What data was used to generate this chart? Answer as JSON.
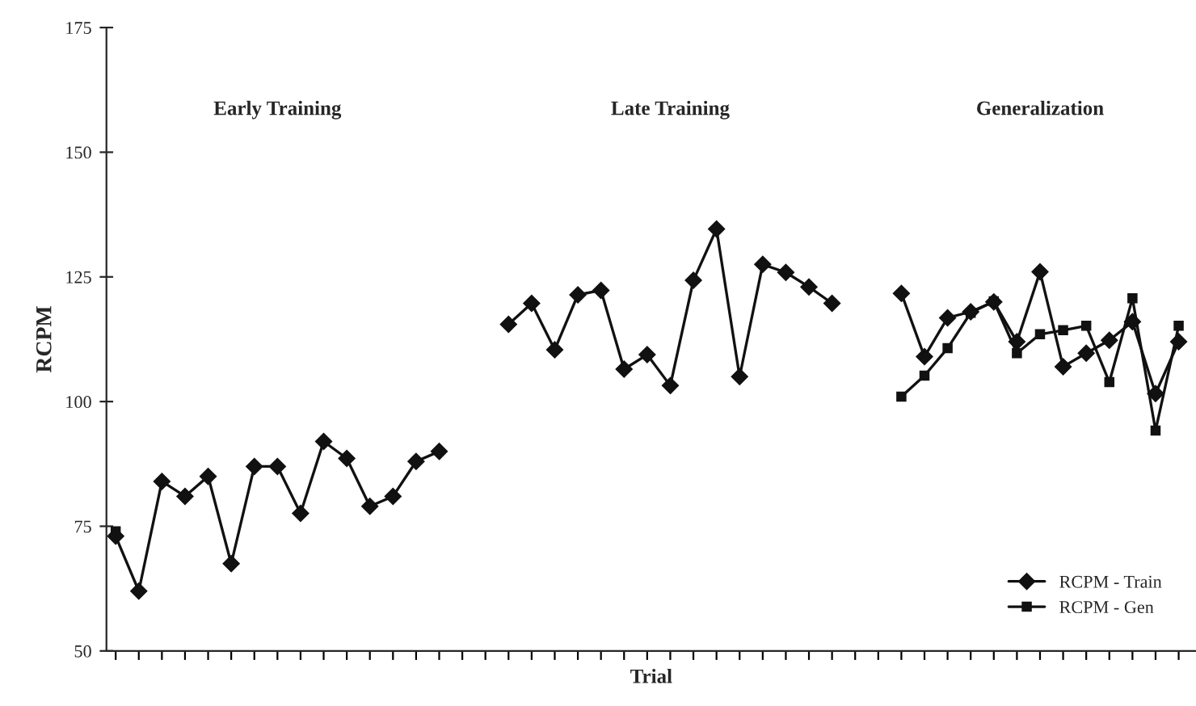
{
  "chart_data": {
    "type": "line",
    "xlabel": "Trial",
    "ylabel": "RCPM",
    "categories": [
      null,
      null,
      null,
      null,
      null,
      null,
      null,
      null,
      null,
      null,
      null,
      null,
      null,
      null,
      null,
      null,
      null,
      null,
      null,
      null,
      null,
      null,
      null,
      null,
      null,
      null,
      null,
      null,
      null,
      null,
      null,
      null,
      null,
      null,
      null,
      null,
      null,
      null,
      null,
      null,
      null,
      null,
      null,
      null,
      null,
      null,
      null
    ],
    "series": [
      {
        "name": "RCPM - Train",
        "color": "#111111",
        "marker": "diamond",
        "values": [
          73,
          62,
          84,
          81,
          85,
          67.5,
          87,
          87,
          77.6,
          92,
          88.6,
          79,
          81,
          88,
          90,
          null,
          null,
          115.5,
          119.7,
          110.4,
          121.4,
          122.3,
          106.5,
          109.4,
          103.2,
          124.3,
          134.6,
          105,
          127.5,
          125.9,
          123,
          119.7,
          null,
          null,
          121.7,
          109,
          116.8,
          118,
          120,
          112,
          126,
          107,
          109.7,
          112.3,
          116,
          101.6,
          112
        ]
      },
      {
        "name": "RCPM - Gen",
        "color": "#111111",
        "marker": "square",
        "values": [
          74,
          null,
          null,
          null,
          null,
          null,
          null,
          null,
          null,
          null,
          null,
          null,
          null,
          null,
          null,
          null,
          null,
          null,
          null,
          null,
          null,
          null,
          null,
          null,
          null,
          null,
          null,
          null,
          null,
          null,
          null,
          null,
          null,
          null,
          101,
          105.2,
          110.7,
          117.8,
          120.1,
          109.7,
          113.5,
          114.3,
          115.2,
          103.9,
          120.7,
          94.2,
          115.2
        ]
      }
    ],
    "annotations": [
      "Early Training",
      "Late Training",
      "Generalization"
    ],
    "ylim": [
      50,
      175
    ],
    "yticks": [
      50,
      75,
      100,
      125,
      150,
      175
    ],
    "tick_labels": "y",
    "grid": false,
    "legend": "bottom right",
    "line_style": "solid"
  }
}
